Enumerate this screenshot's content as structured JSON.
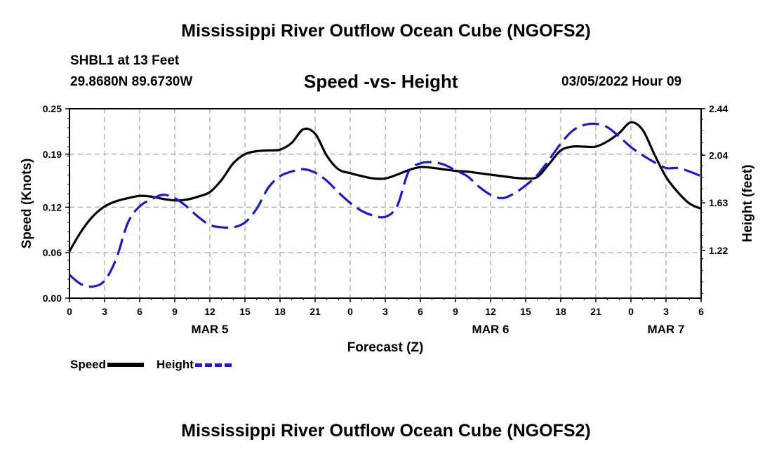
{
  "header": {
    "title": "Mississippi River Outflow Ocean Cube (NGOFS2)",
    "station": "SHBL1 at 13 Feet",
    "coordinates": "29.8680N  89.6730W",
    "subtitle": "Speed -vs- Height",
    "datetime": "03/05/2022 Hour 09"
  },
  "footer": {
    "title": "Mississippi River Outflow Ocean Cube (NGOFS2)"
  },
  "legend": {
    "speed_label": "Speed",
    "height_label": "Height"
  },
  "colors": {
    "speed": "#000000",
    "height": "#1a1ad6",
    "grid": "#b4b4b4"
  },
  "chart_data": {
    "type": "line",
    "title": "Speed -vs- Height",
    "xlabel": "Forecast (Z)",
    "ylabel_left": "Speed (Knots)",
    "ylabel_right": "Height (feet)",
    "xlim": [
      0,
      54
    ],
    "x_ticks": [
      0,
      3,
      6,
      9,
      12,
      15,
      18,
      21,
      24,
      27,
      30,
      33,
      36,
      39,
      42,
      45,
      48,
      51,
      54
    ],
    "x_tick_labels": [
      "0",
      "3",
      "6",
      "9",
      "12",
      "15",
      "18",
      "21",
      "0",
      "3",
      "6",
      "9",
      "12",
      "15",
      "18",
      "21",
      "0",
      "3",
      "6"
    ],
    "day_labels": [
      {
        "label": "MAR 5",
        "x": 12
      },
      {
        "label": "MAR 6",
        "x": 36
      },
      {
        "label": "MAR 7",
        "x": 51
      }
    ],
    "ylim_left": [
      0,
      0.25
    ],
    "y_left_ticks": [
      0.0,
      0.06,
      0.12,
      0.19,
      0.25
    ],
    "y_left_tick_labels": [
      "0.00",
      "0.06",
      "0.12",
      "0.19",
      "0.25"
    ],
    "ylim_right": [
      0.81,
      2.44
    ],
    "y_right_ticks": [
      1.22,
      1.63,
      2.04,
      2.44
    ],
    "y_right_tick_labels": [
      "1.22",
      "1.63",
      "2.04",
      "2.44"
    ],
    "grid": true,
    "series": [
      {
        "name": "Speed",
        "axis": "left",
        "style": "solid",
        "x": [
          0,
          1,
          2,
          3,
          4,
          5,
          6,
          7,
          8,
          9,
          10,
          11,
          12,
          13,
          14,
          15,
          16,
          17,
          18,
          19,
          20,
          21,
          22,
          23,
          24,
          25,
          26,
          27,
          28,
          29,
          30,
          31,
          32,
          33,
          34,
          35,
          36,
          37,
          38,
          39,
          40,
          41,
          42,
          43,
          44,
          45,
          46,
          47,
          48,
          49,
          50,
          51,
          52,
          53,
          54
        ],
        "values": [
          0.062,
          0.088,
          0.108,
          0.121,
          0.128,
          0.132,
          0.135,
          0.134,
          0.131,
          0.129,
          0.13,
          0.134,
          0.14,
          0.156,
          0.178,
          0.19,
          0.194,
          0.195,
          0.196,
          0.205,
          0.223,
          0.217,
          0.188,
          0.17,
          0.165,
          0.161,
          0.158,
          0.158,
          0.163,
          0.169,
          0.173,
          0.172,
          0.17,
          0.168,
          0.167,
          0.165,
          0.163,
          0.161,
          0.159,
          0.158,
          0.16,
          0.177,
          0.195,
          0.2,
          0.2,
          0.2,
          0.207,
          0.218,
          0.232,
          0.222,
          0.19,
          0.16,
          0.14,
          0.125,
          0.118
        ]
      },
      {
        "name": "Height",
        "axis": "right",
        "style": "dashed",
        "x": [
          0,
          1,
          2,
          3,
          4,
          5,
          6,
          7,
          8,
          9,
          10,
          11,
          12,
          13,
          14,
          15,
          16,
          17,
          18,
          19,
          20,
          21,
          22,
          23,
          24,
          25,
          26,
          27,
          28,
          29,
          30,
          31,
          32,
          33,
          34,
          35,
          36,
          37,
          38,
          39,
          40,
          41,
          42,
          43,
          44,
          45,
          46,
          47,
          48,
          49,
          50,
          51,
          52,
          53,
          54
        ],
        "values": [
          1.01,
          0.93,
          0.91,
          0.96,
          1.15,
          1.46,
          1.6,
          1.66,
          1.7,
          1.67,
          1.6,
          1.51,
          1.44,
          1.42,
          1.42,
          1.46,
          1.58,
          1.76,
          1.86,
          1.9,
          1.92,
          1.89,
          1.82,
          1.72,
          1.63,
          1.56,
          1.52,
          1.51,
          1.6,
          1.9,
          1.97,
          1.98,
          1.96,
          1.91,
          1.86,
          1.77,
          1.7,
          1.67,
          1.71,
          1.78,
          1.87,
          2.0,
          2.14,
          2.25,
          2.3,
          2.31,
          2.28,
          2.2,
          2.11,
          2.04,
          1.98,
          1.93,
          1.93,
          1.9,
          1.86
        ]
      }
    ]
  }
}
